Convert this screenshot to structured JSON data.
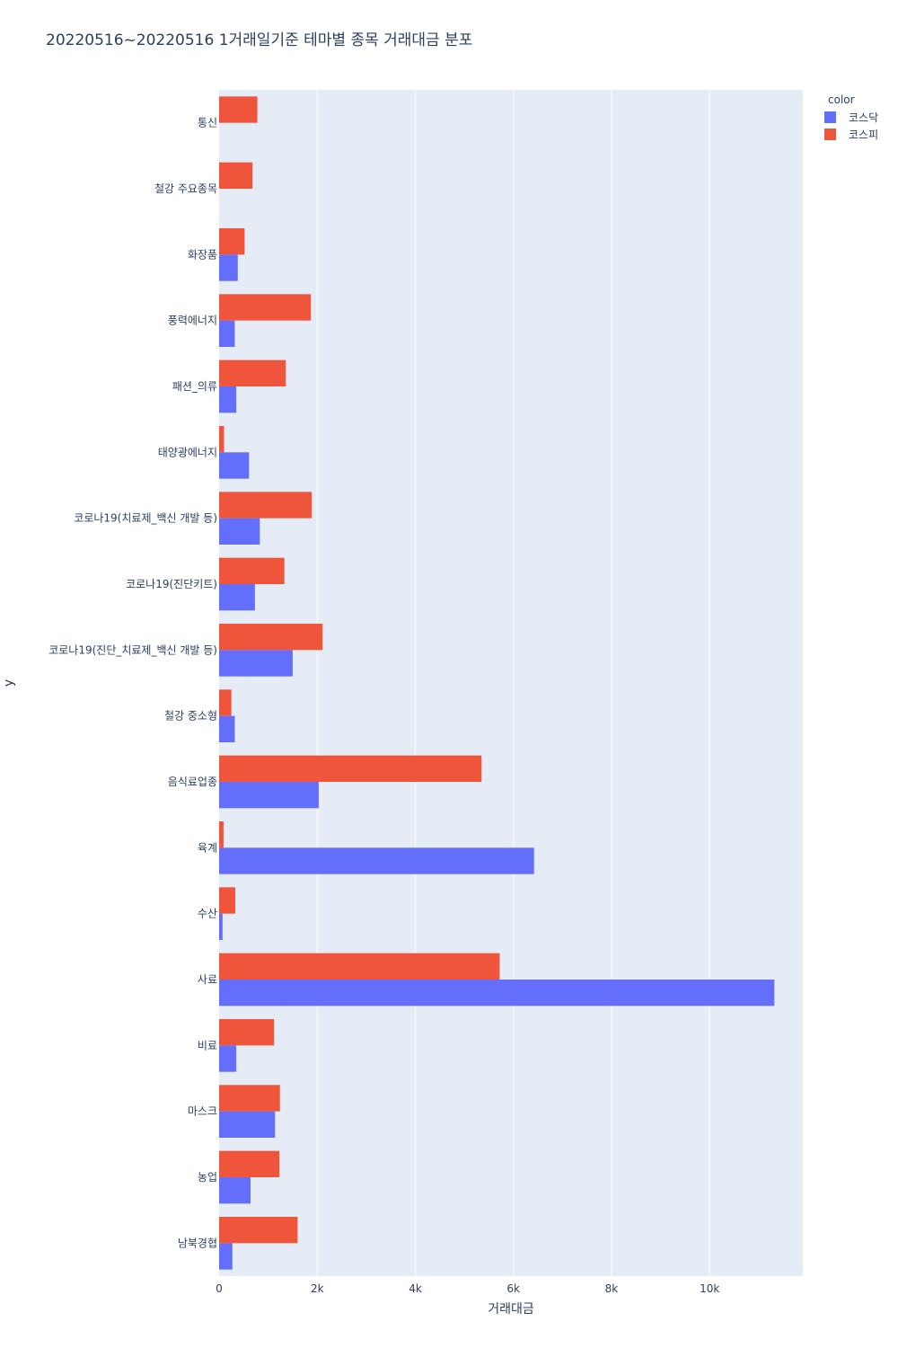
{
  "chart_data": {
    "type": "bar",
    "orientation": "horizontal",
    "barmode": "group",
    "title": "20220516~20220516 1거래일기준 테마별 종목 거래대금 분포",
    "xlabel": "거래대금",
    "ylabel": "y",
    "xlim": [
      0,
      11900
    ],
    "x_ticks": [
      0,
      2000,
      4000,
      6000,
      8000,
      10000
    ],
    "x_tick_labels": [
      "0",
      "2k",
      "4k",
      "6k",
      "8k",
      "10k"
    ],
    "grid": true,
    "legend": {
      "title": "color",
      "placement": "top-right"
    },
    "categories": [
      "통신",
      "철강 주요종목",
      "화장품",
      "풍력에너지",
      "패션_의류",
      "태양광에너지",
      "코로나19(치료제_백신 개발 등)",
      "코로나19(진단키트)",
      "코로나19(진단_치료제_백신 개발 등)",
      "철강 중소형",
      "음식료업종",
      "육계",
      "수산",
      "사료",
      "비료",
      "마스크",
      "농업",
      "남북경협"
    ],
    "series": [
      {
        "name": "코스닥",
        "color": "#636efa",
        "values": [
          0,
          0,
          380,
          320,
          350,
          610,
          830,
          730,
          1500,
          320,
          2030,
          6420,
          70,
          11320,
          350,
          1140,
          640,
          270
        ]
      },
      {
        "name": "코스피",
        "color": "#ef553b",
        "values": [
          780,
          680,
          520,
          1870,
          1360,
          100,
          1890,
          1330,
          2110,
          250,
          5350,
          90,
          330,
          5720,
          1120,
          1240,
          1230,
          1600
        ]
      }
    ]
  }
}
